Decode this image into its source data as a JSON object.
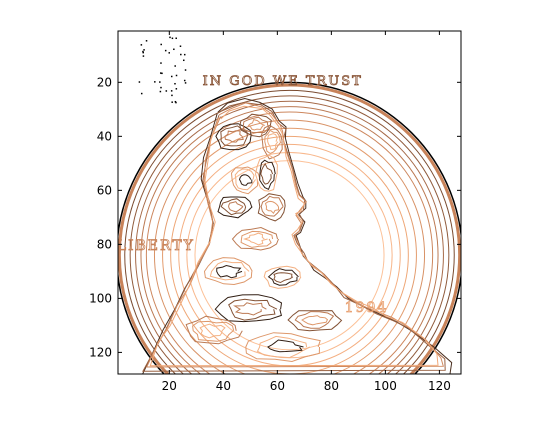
{
  "chart_data": {
    "type": "contour",
    "title": "",
    "xlabel": "",
    "ylabel": "",
    "xlim": [
      1,
      128
    ],
    "ylim": [
      1,
      128
    ],
    "y_reversed": true,
    "aspect": "equal",
    "x_ticks": [
      20,
      40,
      60,
      80,
      100,
      120
    ],
    "y_ticks": [
      20,
      40,
      60,
      80,
      100,
      120
    ],
    "grid": false,
    "legend": "none",
    "colormap": "copper",
    "colormap_colors": [
      "#000000",
      "#7a4b30",
      "#c8835a",
      "#f0a878",
      "#ffc7a0"
    ],
    "subject": "coin portrait contour map",
    "coin": {
      "center": [
        64.5,
        84
      ],
      "outer_radius": 63,
      "ring_radii": [
        61,
        59,
        57,
        55,
        53,
        50,
        47,
        44,
        41,
        38,
        35
      ]
    },
    "inscriptions": [
      {
        "text": "IN GOD WE TRUST",
        "position": [
          62,
          21
        ]
      },
      {
        "text": "LIBERTY",
        "position": [
          15,
          82
        ]
      },
      {
        "text": "1994",
        "position": [
          93,
          105
        ]
      }
    ]
  }
}
